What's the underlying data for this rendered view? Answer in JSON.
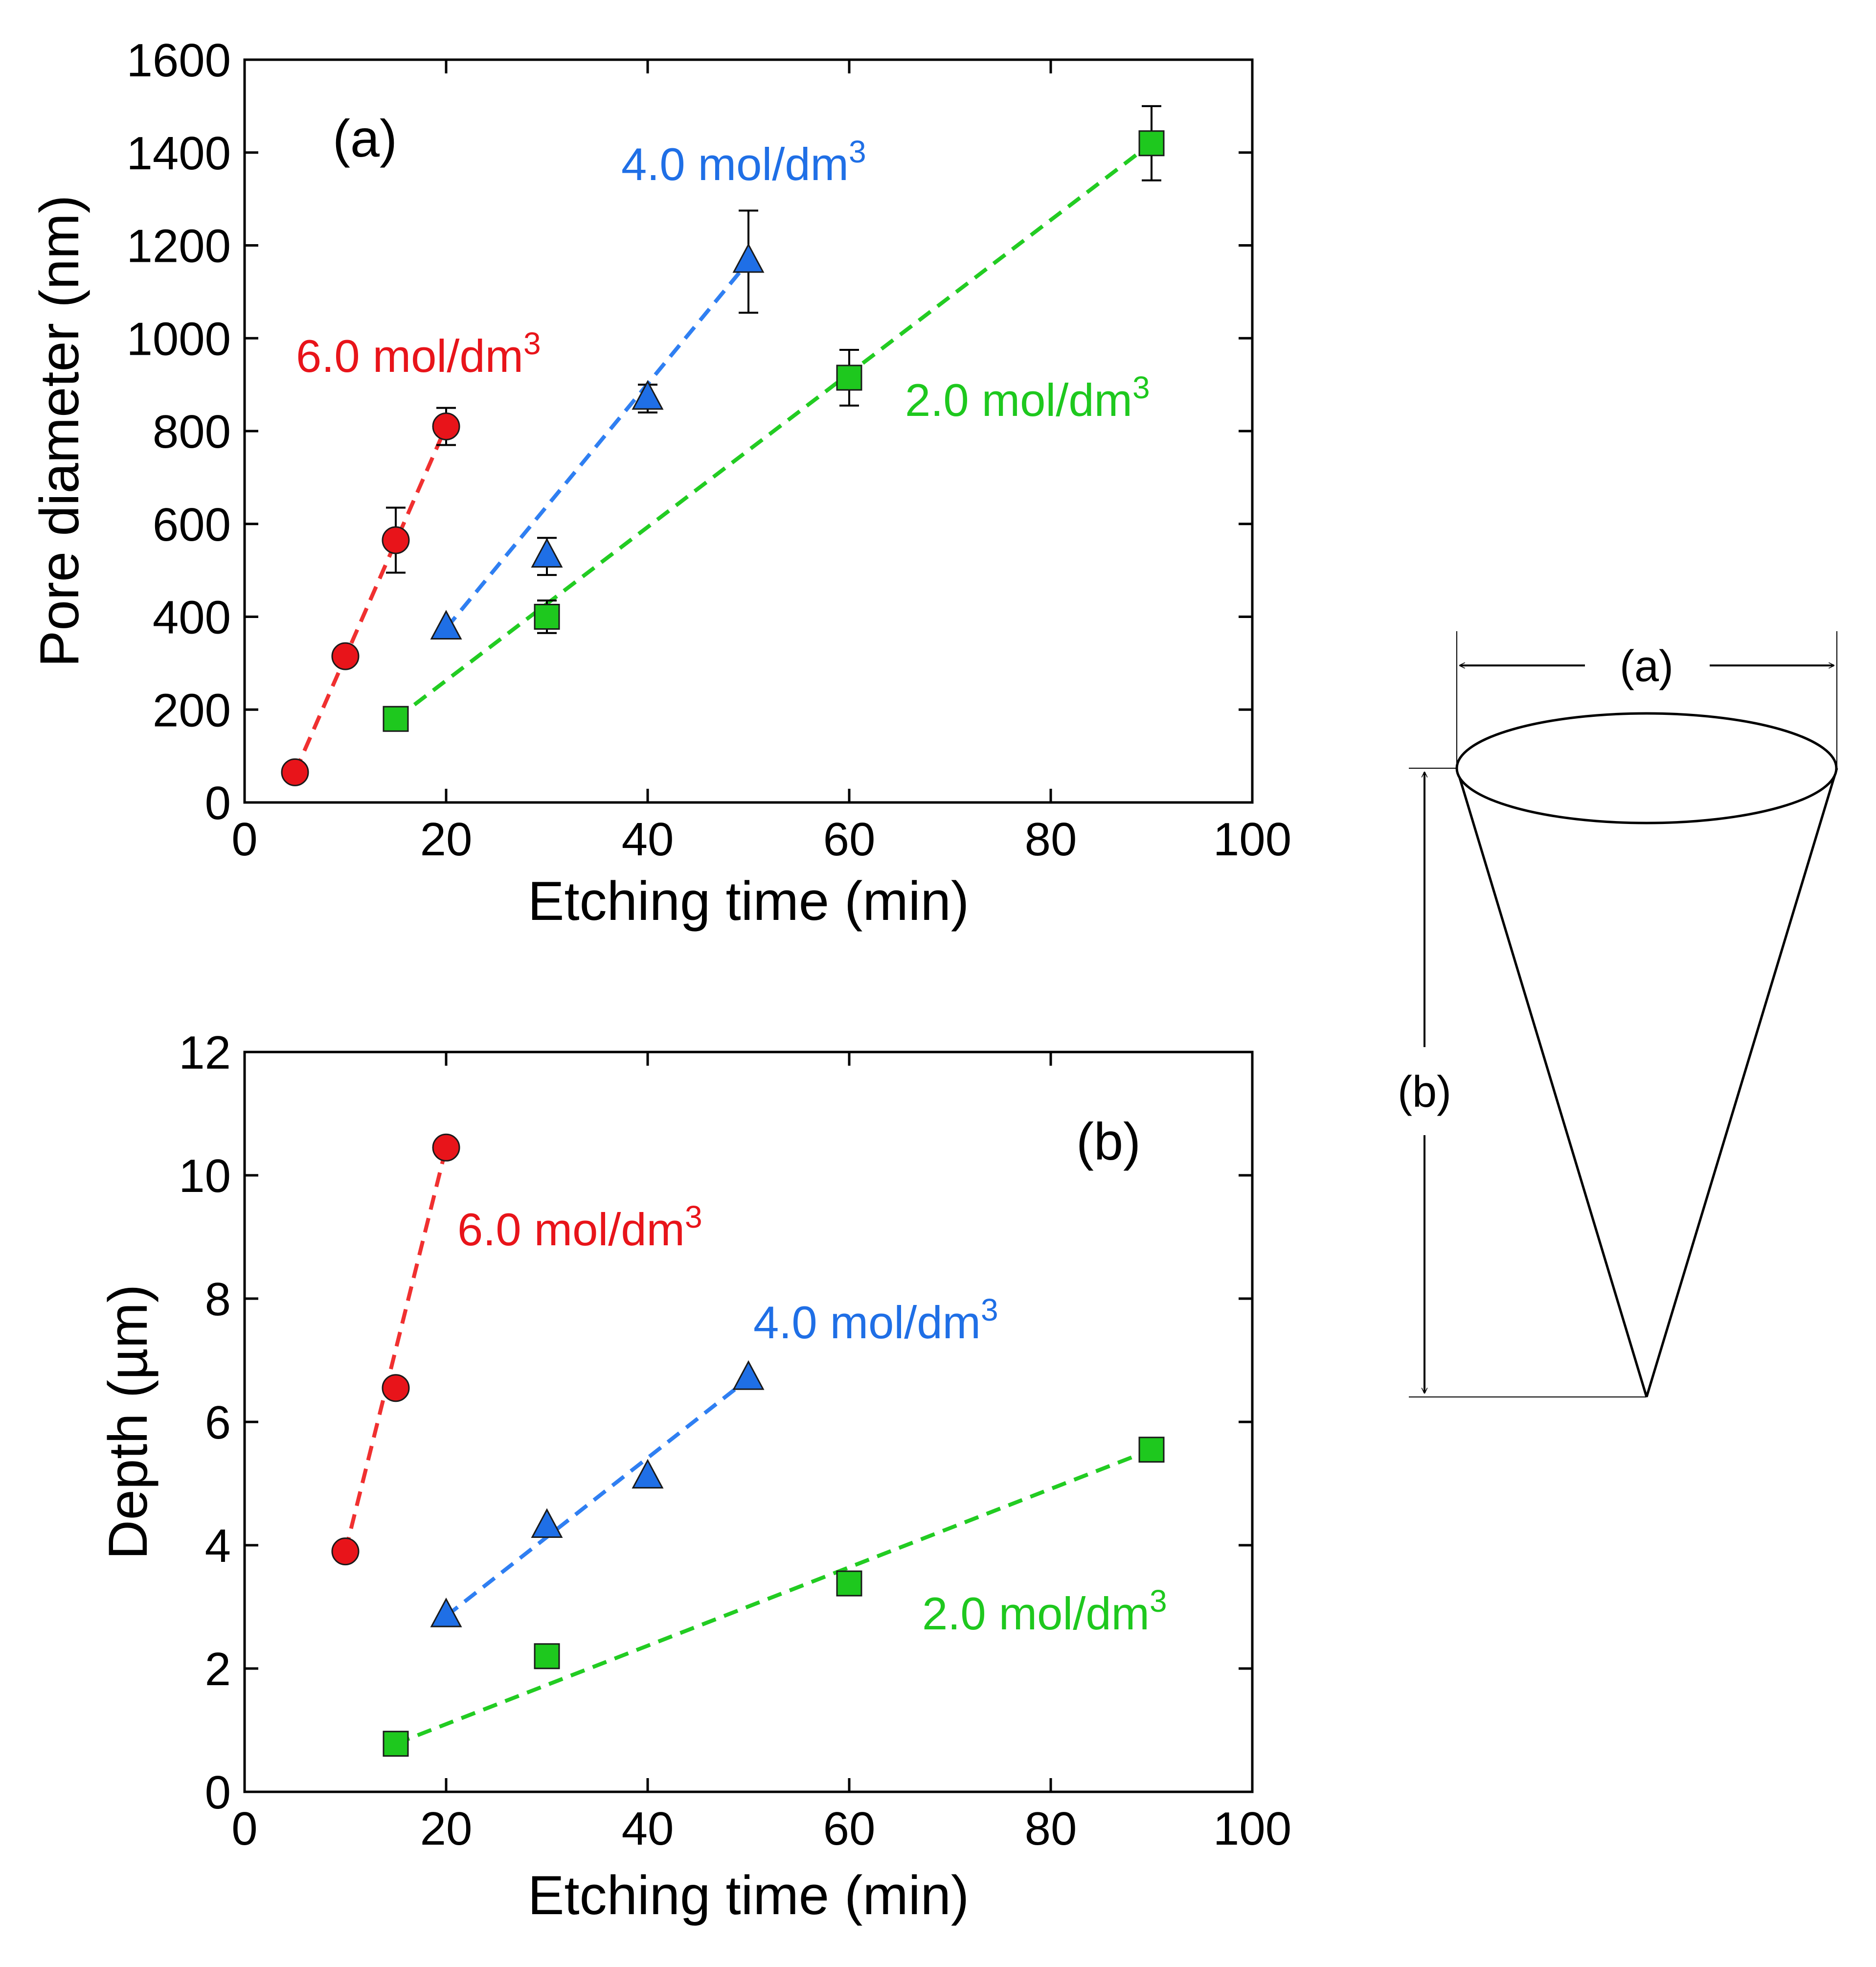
{
  "chart_data": [
    {
      "type": "scatter",
      "panel_label": "(a)",
      "xlabel": "Etching time (min)",
      "ylabel": "Pore diameter (nm)",
      "xlim": [
        0,
        100
      ],
      "ylim": [
        0,
        1600
      ],
      "xticks": [
        "0",
        "20",
        "40",
        "60",
        "80",
        "100"
      ],
      "yticks": [
        "0",
        "200",
        "400",
        "600",
        "800",
        "1000",
        "1200",
        "1400",
        "1600"
      ],
      "grid": false,
      "legend": "none",
      "series": [
        {
          "name": "6.0 mol/dm",
          "superscript": "3",
          "color": "#e8141a",
          "line_color": "#f03030",
          "marker": "circle",
          "points": [
            {
              "x": 5,
              "y": 65
            },
            {
              "x": 10,
              "y": 315
            },
            {
              "x": 15,
              "y": 565,
              "err": 70
            },
            {
              "x": 20,
              "y": 810,
              "err": 40
            }
          ],
          "fit": [
            {
              "x": 5,
              "y": 65
            },
            {
              "x": 20,
              "y": 810
            }
          ]
        },
        {
          "name": "4.0 mol/dm",
          "superscript": "3",
          "color": "#1f6fe6",
          "line_color": "#2f7ff2",
          "marker": "triangle",
          "points": [
            {
              "x": 20,
              "y": 375
            },
            {
              "x": 30,
              "y": 530,
              "err": 40
            },
            {
              "x": 40,
              "y": 870,
              "err": 30
            },
            {
              "x": 50,
              "y": 1165,
              "err": 110
            }
          ],
          "fit": [
            {
              "x": 20,
              "y": 375
            },
            {
              "x": 50,
              "y": 1165
            }
          ]
        },
        {
          "name": "2.0 mol/dm",
          "superscript": "3",
          "color": "#1ec81e",
          "line_color": "#22cc22",
          "marker": "square",
          "points": [
            {
              "x": 15,
              "y": 180
            },
            {
              "x": 30,
              "y": 400,
              "err": 35
            },
            {
              "x": 60,
              "y": 915,
              "err": 60
            },
            {
              "x": 90,
              "y": 1420,
              "err": 80
            }
          ],
          "fit": [
            {
              "x": 15,
              "y": 180
            },
            {
              "x": 90,
              "y": 1420
            }
          ]
        }
      ]
    },
    {
      "type": "scatter",
      "panel_label": "(b)",
      "xlabel": "Etching time (min)",
      "ylabel": "Depth (µm)",
      "xlim": [
        0,
        100
      ],
      "ylim": [
        0,
        12
      ],
      "xticks": [
        "0",
        "20",
        "40",
        "60",
        "80",
        "100"
      ],
      "yticks": [
        "0",
        "2",
        "4",
        "6",
        "8",
        "10",
        "12"
      ],
      "grid": false,
      "legend": "none",
      "series": [
        {
          "name": "6.0 mol/dm",
          "superscript": "3",
          "color": "#e8141a",
          "line_color": "#f03030",
          "marker": "circle",
          "points": [
            {
              "x": 10,
              "y": 3.9
            },
            {
              "x": 15,
              "y": 6.55
            },
            {
              "x": 20,
              "y": 10.45
            }
          ],
          "fit": [
            {
              "x": 10,
              "y": 3.9
            },
            {
              "x": 20,
              "y": 10.45
            }
          ]
        },
        {
          "name": "4.0 mol/dm",
          "superscript": "3",
          "color": "#1f6fe6",
          "line_color": "#2f7ff2",
          "marker": "triangle",
          "points": [
            {
              "x": 20,
              "y": 2.85
            },
            {
              "x": 30,
              "y": 4.3
            },
            {
              "x": 40,
              "y": 5.1
            },
            {
              "x": 50,
              "y": 6.7
            }
          ],
          "fit": [
            {
              "x": 20,
              "y": 2.85
            },
            {
              "x": 50,
              "y": 6.7
            }
          ]
        },
        {
          "name": "2.0 mol/dm",
          "superscript": "3",
          "color": "#1ec81e",
          "line_color": "#22cc22",
          "marker": "square",
          "points": [
            {
              "x": 15,
              "y": 0.78
            },
            {
              "x": 30,
              "y": 2.2
            },
            {
              "x": 60,
              "y": 3.38
            },
            {
              "x": 90,
              "y": 5.55
            }
          ],
          "fit": [
            {
              "x": 15,
              "y": 0.78
            },
            {
              "x": 90,
              "y": 5.55
            }
          ]
        }
      ]
    }
  ],
  "cone_diagram": {
    "width_label": "(a)",
    "depth_label": "(b)"
  }
}
